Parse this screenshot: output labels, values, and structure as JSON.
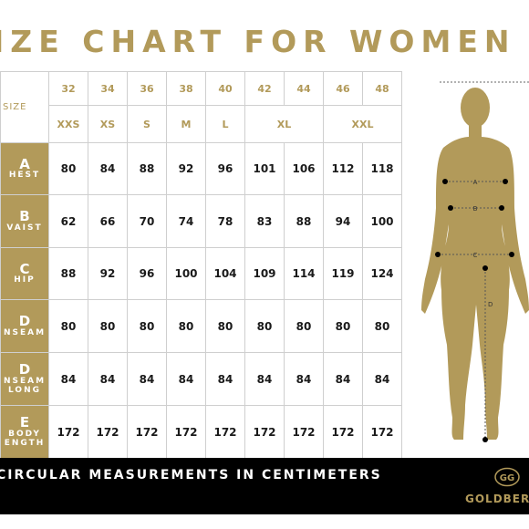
{
  "title": "IZE CHART FOR WOMEN",
  "table": {
    "size_label": "SIZE",
    "size_numbers": [
      "32",
      "34",
      "36",
      "38",
      "40",
      "42",
      "44",
      "46",
      "48"
    ],
    "size_letters": [
      {
        "label": "XXS",
        "span": 1
      },
      {
        "label": "XS",
        "span": 1
      },
      {
        "label": "S",
        "span": 1
      },
      {
        "label": "M",
        "span": 1
      },
      {
        "label": "L",
        "span": 1
      },
      {
        "label": "XL",
        "span": 2
      },
      {
        "label": "XXL",
        "span": 2
      }
    ],
    "rows": [
      {
        "letter": "A",
        "name": [
          "HEST"
        ],
        "values": [
          "80",
          "84",
          "88",
          "92",
          "96",
          "101",
          "106",
          "112",
          "118"
        ]
      },
      {
        "letter": "B",
        "name": [
          "VAIST"
        ],
        "values": [
          "62",
          "66",
          "70",
          "74",
          "78",
          "83",
          "88",
          "94",
          "100"
        ]
      },
      {
        "letter": "C",
        "name": [
          "HIP"
        ],
        "values": [
          "88",
          "92",
          "96",
          "100",
          "104",
          "109",
          "114",
          "119",
          "124"
        ]
      },
      {
        "letter": "D",
        "name": [
          "NSEAM"
        ],
        "values": [
          "80",
          "80",
          "80",
          "80",
          "80",
          "80",
          "80",
          "80",
          "80"
        ]
      },
      {
        "letter": "D",
        "name": [
          "NSEAM",
          "LONG"
        ],
        "values": [
          "84",
          "84",
          "84",
          "84",
          "84",
          "84",
          "84",
          "84",
          "84"
        ]
      },
      {
        "letter": "E",
        "name": [
          "BODY",
          "ENGTH"
        ],
        "values": [
          "172",
          "172",
          "172",
          "172",
          "172",
          "172",
          "172",
          "172",
          "172"
        ]
      }
    ]
  },
  "figure": {
    "markers": [
      "A",
      "B",
      "C",
      "D"
    ],
    "fill_color": "#b29a5a"
  },
  "footer": {
    "text": "CIRCULAR MEASUREMENTS IN CENTIMETERS",
    "brand": "GOLDBER",
    "logo_letters": "GG"
  },
  "colors": {
    "gold": "#b29a5a",
    "black": "#000000",
    "grid": "#cfcfcf"
  }
}
